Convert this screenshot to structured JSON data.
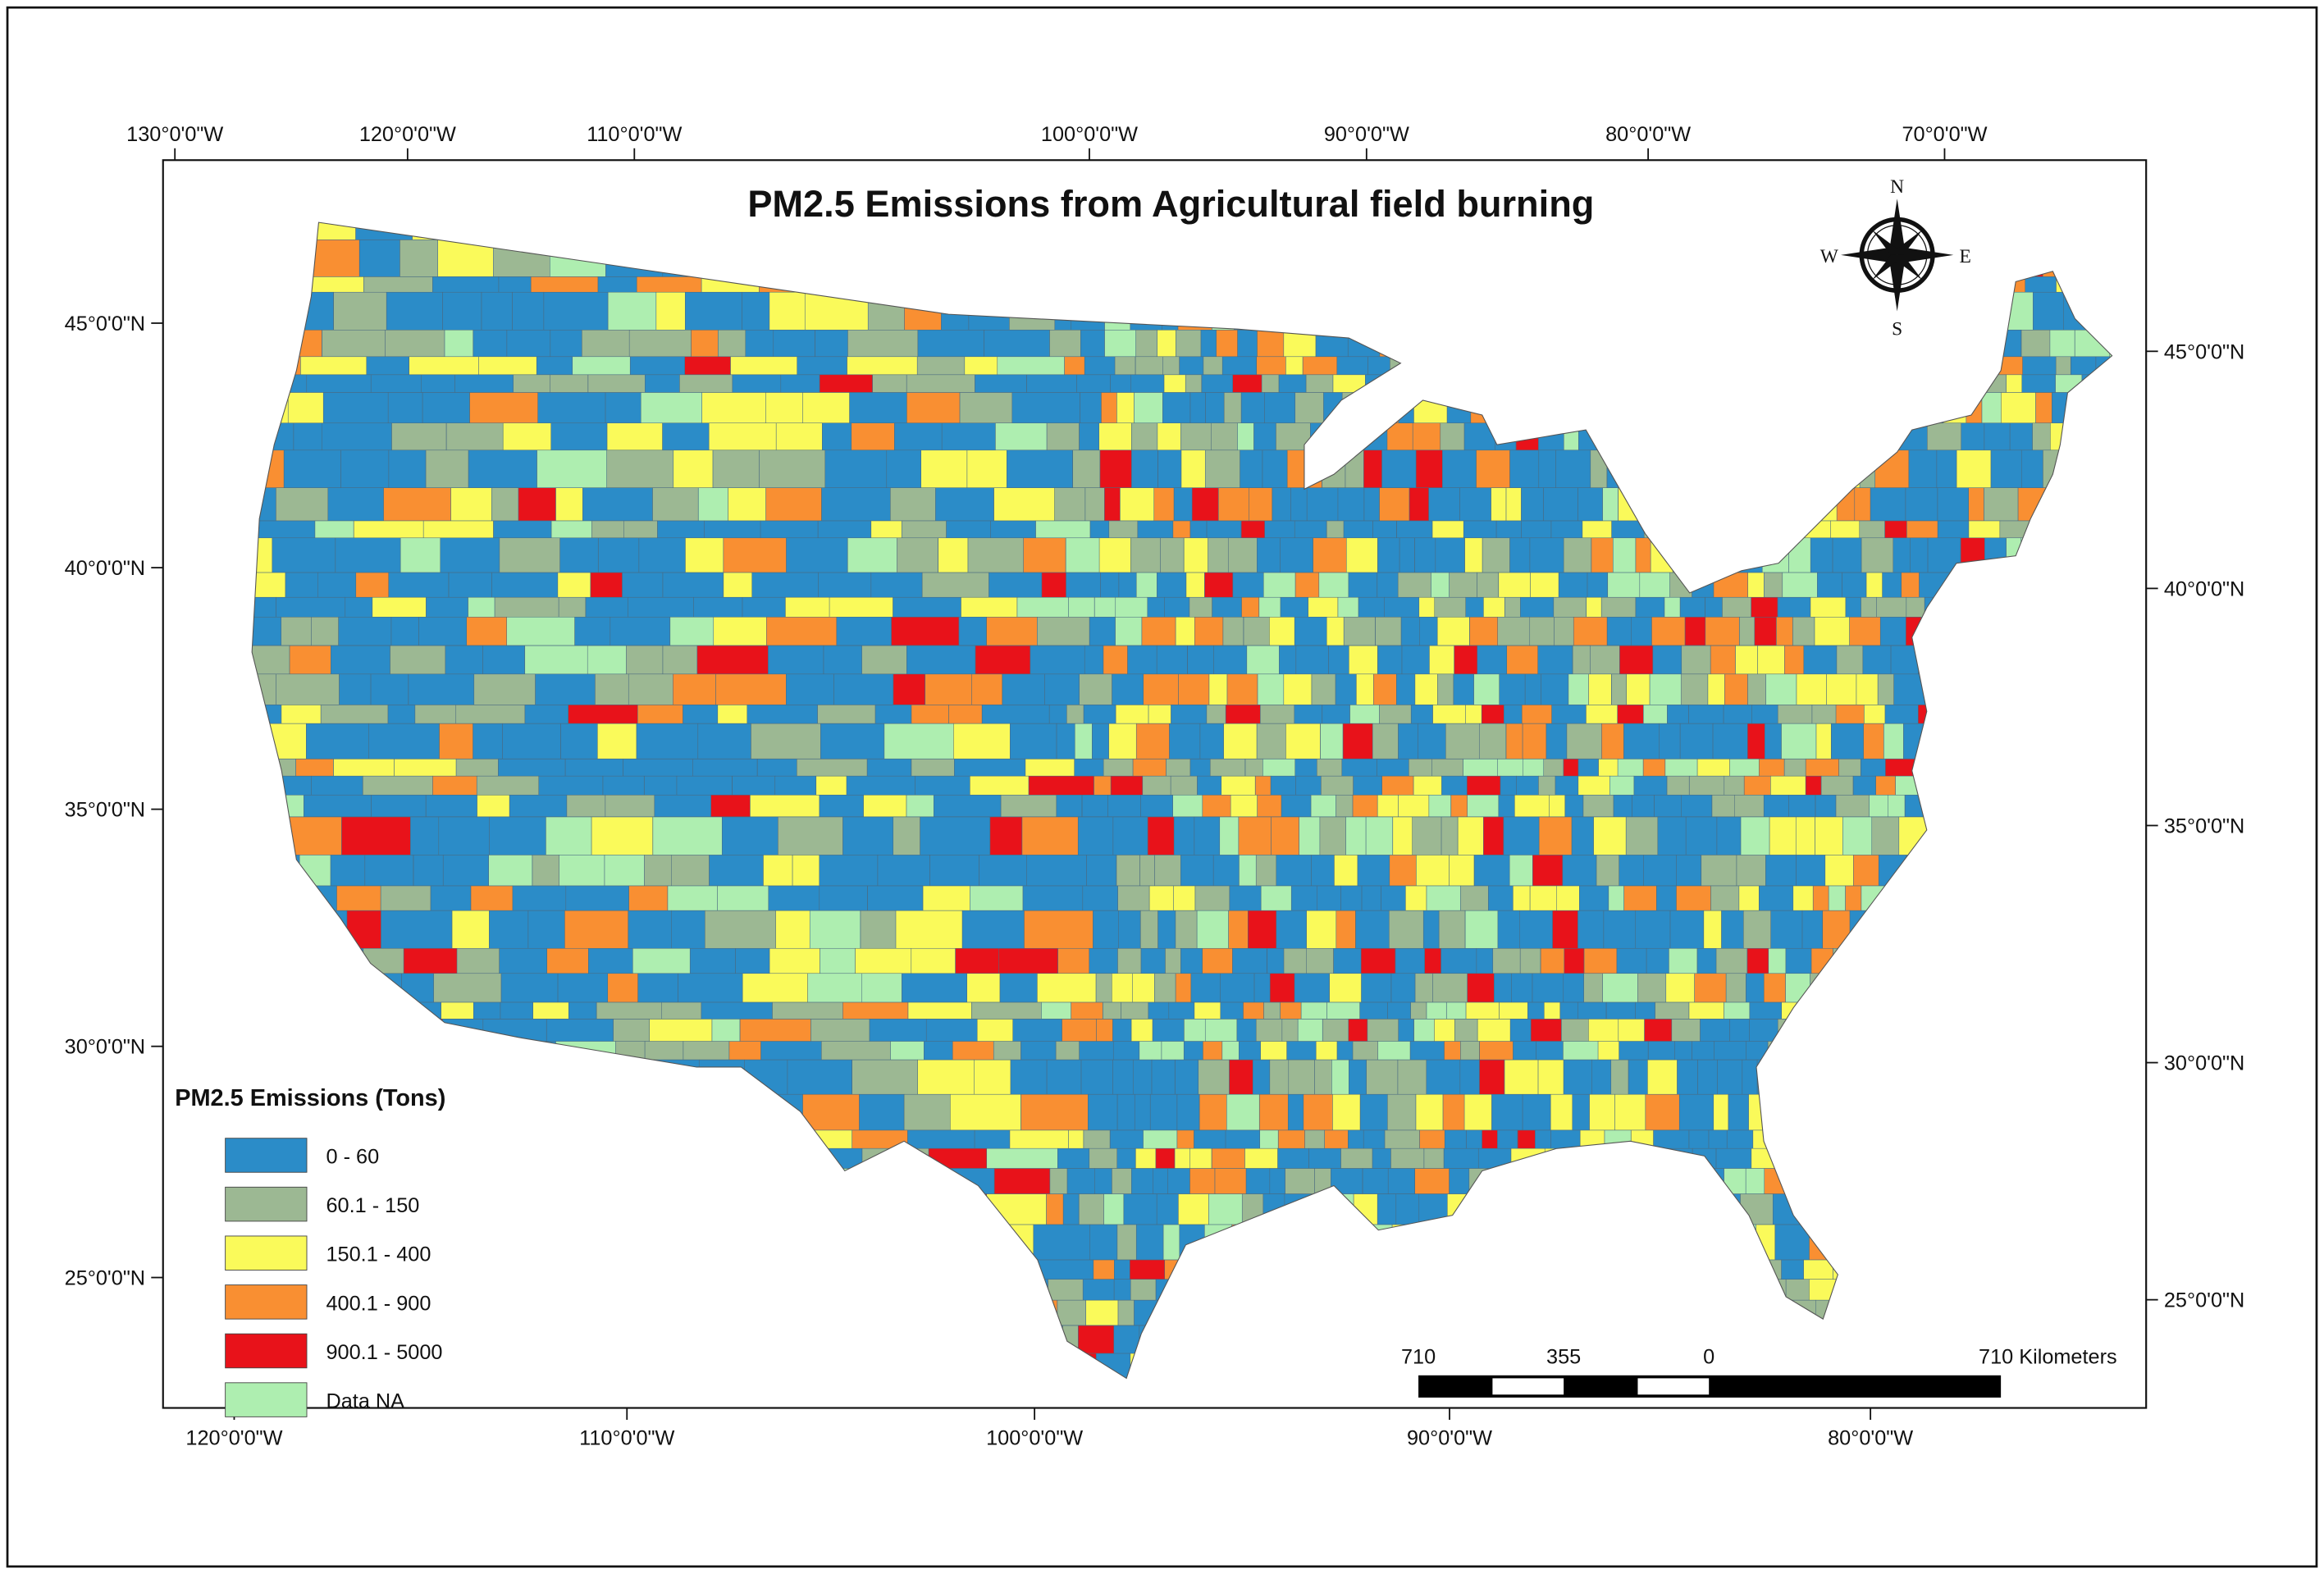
{
  "map": {
    "title": "PM2.5 Emissions from Agricultural field burning",
    "top_longitude_labels": [
      "130°0'0\"W",
      "120°0'0\"W",
      "110°0'0\"W",
      "100°0'0\"W",
      "90°0'0\"W",
      "80°0'0\"W",
      "70°0'0\"W"
    ],
    "bottom_longitude_labels": [
      "120°0'0\"W",
      "110°0'0\"W",
      "100°0'0\"W",
      "90°0'0\"W",
      "80°0'0\"W"
    ],
    "left_latitude_labels": [
      "45°0'0\"N",
      "40°0'0\"N",
      "35°0'0\"N",
      "30°0'0\"N",
      "25°0'0\"N"
    ],
    "right_latitude_labels": [
      "45°0'0\"N",
      "40°0'0\"N",
      "35°0'0\"N",
      "30°0'0\"N",
      "25°0'0\"N"
    ],
    "compass": {
      "icon": "compass-rose-icon",
      "n": "N",
      "s": "S",
      "e": "E",
      "w": "W"
    },
    "legend": {
      "title": "PM2.5 Emissions (Tons)",
      "items": [
        {
          "label": "0 - 60",
          "color": "#2b8cc8"
        },
        {
          "label": "60.1 - 150",
          "color": "#9cb893"
        },
        {
          "label": "150.1 - 400",
          "color": "#fafa5a"
        },
        {
          "label": "400.1 - 900",
          "color": "#f98f32"
        },
        {
          "label": "900.1 - 5000",
          "color": "#e8121a"
        },
        {
          "label": "Data NA",
          "color": "#aeeeb0"
        }
      ]
    },
    "scale_bar": {
      "labels": [
        "710",
        "355",
        "0",
        "710 Kilometers"
      ]
    }
  }
}
